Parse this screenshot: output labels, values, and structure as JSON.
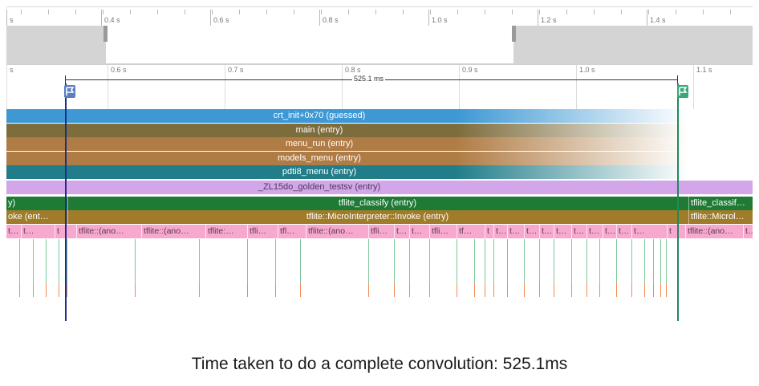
{
  "overview_ruler": {
    "ticks": [
      "s",
      "0.4 s",
      "0.6 s",
      "0.8 s",
      "1.0 s",
      "1.2 s",
      "1.4 s"
    ]
  },
  "main_ruler": {
    "ticks": [
      "s",
      "0.6 s",
      "0.7 s",
      "0.8 s",
      "0.9 s",
      "1.0 s",
      "1.1 s"
    ],
    "duration_label": "525.1 ms"
  },
  "flags": {
    "start_color": "#5b7fbf",
    "end_color": "#3aa77a"
  },
  "colors": {
    "cursor_start": "#1c2f8c",
    "cursor_end": "#1f8a5c",
    "marker_green": "#7fc79b",
    "marker_orange": "#f08a55"
  },
  "tracks": [
    {
      "label": "crt_init+0x70 (guessed)",
      "color": "#3d98d4",
      "fade": true
    },
    {
      "label": "main (entry)",
      "color": "#7d6c3c",
      "fade": true
    },
    {
      "label": "menu_run (entry)",
      "color": "#b07c45",
      "fade": true
    },
    {
      "label": "models_menu (entry)",
      "color": "#b07c45",
      "fade": true
    },
    {
      "label": "pdti8_menu (entry)",
      "color": "#227d8a",
      "fade": true
    },
    {
      "label": "_ZL15do_golden_testsv (entry)",
      "color": "#d3a6ea",
      "text_color": "#4a3a5a",
      "fade": false
    }
  ],
  "classify_row": {
    "color": "#1e7a35",
    "left": "y)",
    "center": "tflite_classify (entry)",
    "right": "tflite_classif…"
  },
  "invoke_row": {
    "color": "#a07b2a",
    "left": "oke (ent…",
    "center": "tflite::MicroInterpreter::Invoke (entry)",
    "right": "tflite::Microl…"
  },
  "op_row": {
    "color": "#f7a8cf",
    "text_color": "#5a3a4a",
    "slices": [
      "t…",
      "t…",
      "t",
      "tflite::(ano…",
      "tflite::(ano…",
      "tflite:…",
      "tfli…",
      "tfl…",
      "tflite::(ano…",
      "tfli…",
      "t…",
      "t…",
      "tfli…",
      "tf…",
      "t",
      "t…",
      "t…",
      "t…",
      "t…",
      "t…",
      "t…",
      "t…",
      "t…",
      "t…",
      "t…",
      "t",
      "tflite::(ano…",
      "t…"
    ]
  },
  "caption": "Time taken to do a complete convolution: 525.1ms"
}
